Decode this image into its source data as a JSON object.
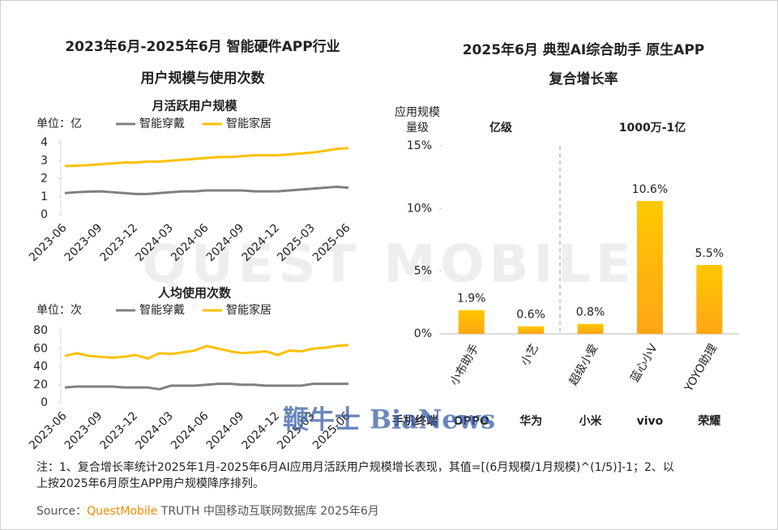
{
  "left_title": [
    "2023年6月-2025年6月 智能硬件APP行业",
    "用户规模与使用次数"
  ],
  "watermarks": [
    "QUEST MOBILE",
    "鞭牛士 BiaNews"
  ],
  "note": [
    "注：1、复合增长率统计2025年1月-2025年6月AI应用月活跃用户规模增长表现，其值=[(6月规模/1月规模)^(1/5)]-1；2、以",
    "上按2025年6月原生APP用户规模降序排列。"
  ],
  "source": [
    "Source：",
    "QuestMobile",
    " TRUTH 中国移动互联网数据库 2025年6月"
  ],
  "chart_data": [
    {
      "type": "line",
      "subtitle": "月活跃用户规模",
      "unit_label": "单位：亿",
      "categories": [
        "2023-06",
        null,
        null,
        "2023-09",
        null,
        null,
        "2023-12",
        null,
        null,
        "2024-03",
        null,
        null,
        "2024-06",
        null,
        null,
        "2024-09",
        null,
        null,
        "2024-12",
        null,
        null,
        "2025-03",
        null,
        null,
        "2025-06"
      ],
      "series": [
        {
          "name": "智能穿戴",
          "color": "#808080",
          "values": [
            1.2,
            1.25,
            1.28,
            1.3,
            1.25,
            1.2,
            1.15,
            1.15,
            1.2,
            1.25,
            1.3,
            1.3,
            1.35,
            1.35,
            1.35,
            1.35,
            1.3,
            1.3,
            1.3,
            1.35,
            1.4,
            1.45,
            1.5,
            1.55,
            1.5
          ]
        },
        {
          "name": "智能家居",
          "color": "#ffc000",
          "values": [
            2.7,
            2.72,
            2.75,
            2.8,
            2.85,
            2.9,
            2.9,
            2.95,
            2.95,
            3.0,
            3.05,
            3.1,
            3.15,
            3.2,
            3.2,
            3.25,
            3.3,
            3.3,
            3.3,
            3.35,
            3.4,
            3.45,
            3.55,
            3.65,
            3.7
          ]
        }
      ],
      "ylim": [
        0,
        4
      ],
      "yticks": [
        0,
        1,
        2,
        3,
        4
      ]
    },
    {
      "type": "line",
      "subtitle": "人均使用次数",
      "unit_label": "单位：次",
      "categories": [
        "2023-06",
        null,
        null,
        "2023-09",
        null,
        null,
        "2023-12",
        null,
        null,
        "2024-03",
        null,
        null,
        "2024-06",
        null,
        null,
        "2024-09",
        null,
        null,
        "2024-12",
        null,
        null,
        "2025-03",
        null,
        null,
        "2025-06"
      ],
      "series": [
        {
          "name": "智能穿戴",
          "color": "#808080",
          "values": [
            17,
            18,
            18,
            18,
            18,
            17,
            17,
            17,
            15,
            19,
            19,
            19,
            20,
            21,
            21,
            20,
            20,
            19,
            19,
            19,
            19,
            21,
            21,
            21,
            21
          ]
        },
        {
          "name": "智能家居",
          "color": "#ffc000",
          "values": [
            52,
            55,
            52,
            51,
            50,
            51,
            53,
            49,
            55,
            54,
            56,
            58,
            63,
            60,
            57,
            55,
            56,
            57,
            53,
            58,
            57,
            60,
            61,
            63,
            64
          ]
        }
      ],
      "ylim": [
        0,
        80
      ],
      "yticks": [
        0,
        20,
        40,
        60,
        80
      ]
    },
    {
      "type": "bar",
      "title": [
        "2025年6月 典型AI综合助手 原生APP",
        "复合增长率"
      ],
      "y_axis_label": [
        "应用规模",
        "量级"
      ],
      "group_labels": [
        "亿级",
        "1000万-1亿"
      ],
      "categories": [
        "小布助手",
        "小艺",
        "超级小爱",
        "蓝心小V",
        "YOYO助理"
      ],
      "values": [
        1.9,
        0.6,
        0.8,
        10.6,
        5.5
      ],
      "value_labels": [
        "1.9%",
        "0.6%",
        "0.8%",
        "10.6%",
        "5.5%"
      ],
      "row_label": "手机终端",
      "brands": [
        "OPPO",
        "华为",
        "小米",
        "vivo",
        "荣耀"
      ],
      "color": "#ffc000",
      "ylim": [
        0,
        15
      ],
      "yticks": [
        {
          "value": 0,
          "label": "0%"
        },
        {
          "value": 5,
          "label": "5%"
        },
        {
          "value": 10,
          "label": "10%"
        },
        {
          "value": 15,
          "label": "15%"
        }
      ]
    }
  ]
}
